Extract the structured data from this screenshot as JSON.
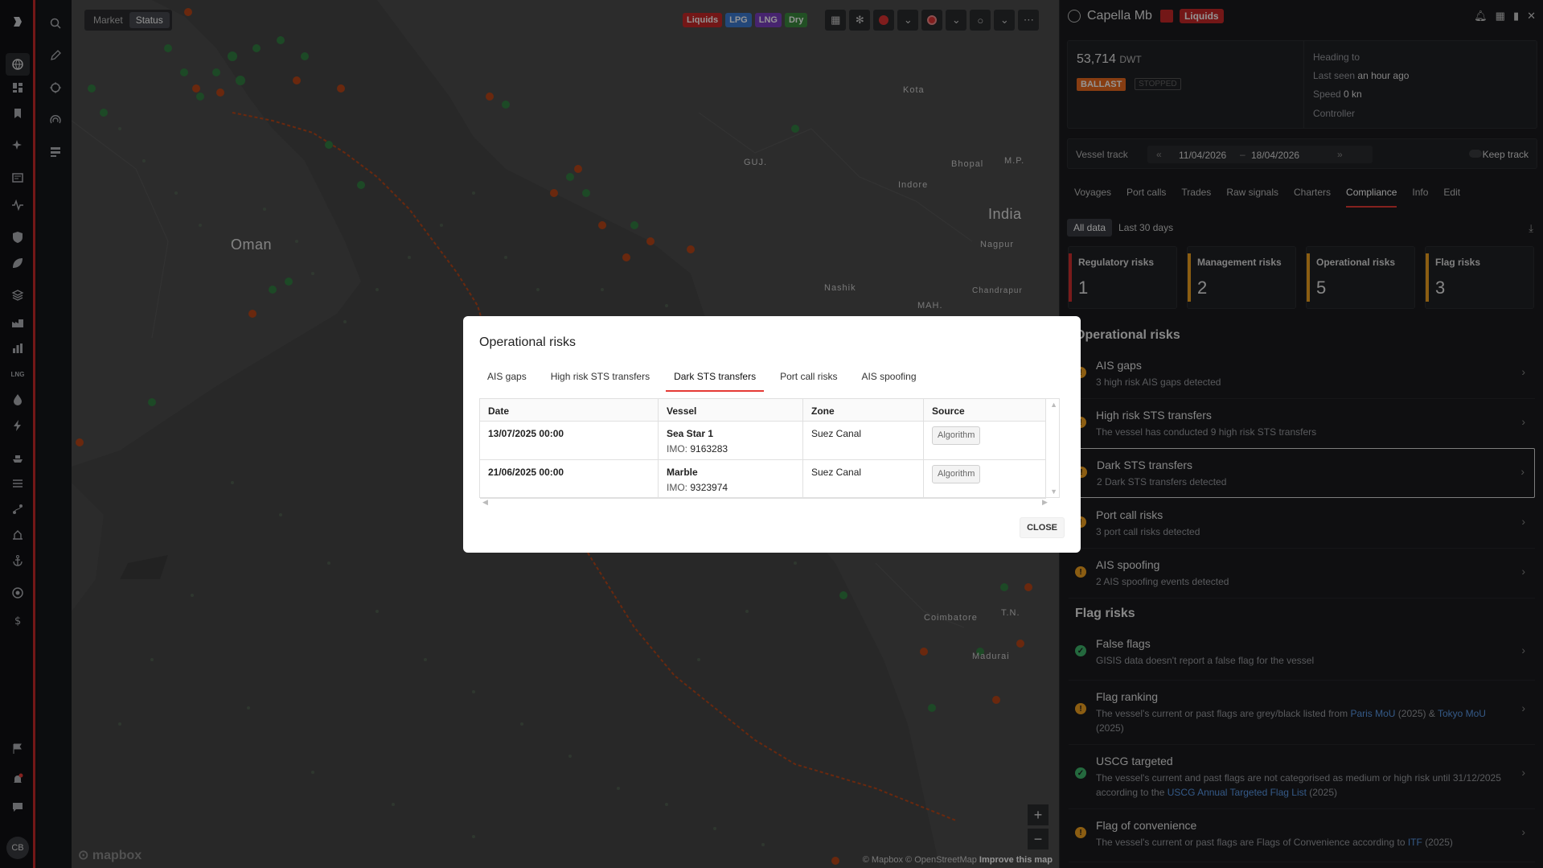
{
  "top": {
    "market_label": "Market",
    "status_label": "Status",
    "chips": [
      {
        "label": "Liquids",
        "color": "#c62828"
      },
      {
        "label": "LPG",
        "color": "#3d7bd1"
      },
      {
        "label": "LNG",
        "color": "#7b3fbf"
      },
      {
        "label": "Dry",
        "color": "#3b8a3e"
      }
    ]
  },
  "map": {
    "labels": {
      "oman": "Oman",
      "india": "India",
      "guj": "GUJ.",
      "mp": "M.P.",
      "kota": "Kota",
      "bhopal": "Bhopal",
      "indore": "Indore",
      "nagpur": "Nagpur",
      "nashik": "Nashik",
      "mah": "MAH.",
      "coimbatore": "Coimbatore",
      "tn": "T.N.",
      "madurai": "Madurai",
      "chandrapur": "Chandrapur"
    },
    "zoom_in": "+",
    "zoom_out": "−",
    "mapbox": "mapbox",
    "attribution_prefix": "© Mapbox © OpenStreetMap",
    "attribution_link": "Improve this map"
  },
  "user_initials": "CB",
  "vessel": {
    "name": "Capella Mb",
    "tag": "Liquids",
    "dwt": "53,714",
    "dwt_unit": "DWT",
    "ballast": "BALLAST",
    "stopped": "STOPPED",
    "heading_label": "Heading to",
    "last_seen_label": "Last seen",
    "last_seen_value": "an hour ago",
    "speed_label": "Speed",
    "speed_value": "0 kn",
    "controller_label": "Controller"
  },
  "track": {
    "label": "Vessel track",
    "from": "11/04/2026",
    "sep": "–",
    "to": "18/04/2026",
    "keep": "Keep track"
  },
  "tabs": [
    "Voyages",
    "Port calls",
    "Trades",
    "Raw signals",
    "Charters",
    "Compliance",
    "Info",
    "Edit"
  ],
  "range": {
    "all": "All data",
    "last": "Last 30 days"
  },
  "risk_cards": [
    {
      "title": "Regulatory risks",
      "count": "1",
      "color": "#d32f2f"
    },
    {
      "title": "Management risks",
      "count": "2",
      "color": "#f0a020"
    },
    {
      "title": "Operational risks",
      "count": "5",
      "color": "#f0a020"
    },
    {
      "title": "Flag risks",
      "count": "3",
      "color": "#f0a020"
    }
  ],
  "op_header": "Operational risks",
  "op_rows": [
    {
      "title": "AIS gaps",
      "sub": "3 high risk AIS gaps detected"
    },
    {
      "title": "High risk STS transfers",
      "sub": "The vessel has conducted 9 high risk STS transfers"
    },
    {
      "title": "Dark STS transfers",
      "sub": "2 Dark STS transfers detected"
    },
    {
      "title": "Port call risks",
      "sub": "3 port call risks detected"
    },
    {
      "title": "AIS spoofing",
      "sub": "2 AIS spoofing events detected"
    }
  ],
  "flag_header": "Flag risks",
  "flag_rows": [
    {
      "title": "False flags",
      "sub": "GISIS data doesn't report a false flag for the vessel"
    },
    {
      "title": "Flag ranking",
      "sub1": "The vessel's current or past flags are grey/black listed from",
      "link1": "Paris MoU",
      "mid": "(2025) &",
      "link2": "Tokyo MoU",
      "sub2": "(2025)"
    },
    {
      "title": "USCG targeted",
      "sub1": "The vessel's current and past flags are not categorised as medium or high risk until 31/12/2025 according to the",
      "link1": "USCG Annual Targeted Flag List",
      "sub2": "(2025)"
    },
    {
      "title": "Flag of convenience",
      "sub1": "The vessel's current or past flags are Flags of Convenience according to",
      "link1": "ITF",
      "sub2": "(2025)"
    }
  ],
  "modal": {
    "title": "Operational risks",
    "tabs": [
      "AIS gaps",
      "High risk STS transfers",
      "Dark STS transfers",
      "Port call risks",
      "AIS spoofing"
    ],
    "columns": [
      "Date",
      "Vessel",
      "Zone",
      "Source"
    ],
    "rows": [
      {
        "date": "13/07/2025 00:00",
        "vessel": "Sea Star 1",
        "imo_label": "IMO:",
        "imo": "9163283",
        "zone": "Suez Canal",
        "source": "Algorithm"
      },
      {
        "date": "21/06/2025 00:00",
        "vessel": "Marble",
        "imo_label": "IMO:",
        "imo": "9323974",
        "zone": "Suez Canal",
        "source": "Algorithm"
      }
    ],
    "close": "CLOSE"
  }
}
